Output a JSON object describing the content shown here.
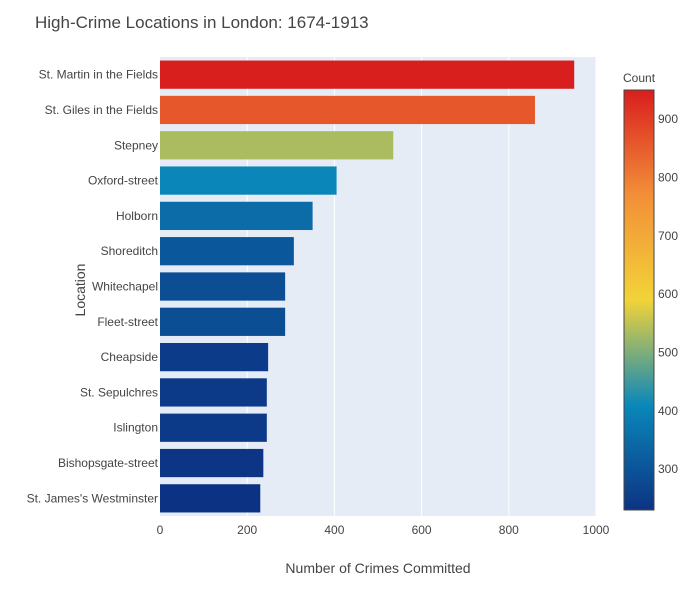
{
  "chart_data": {
    "type": "bar",
    "orientation": "horizontal",
    "title": "High-Crime Locations in London: 1674-1913",
    "xlabel": "Number of Crimes Committed",
    "ylabel": "Location",
    "xlim": [
      0,
      1000
    ],
    "xticks": [
      0,
      200,
      400,
      600,
      800,
      1000
    ],
    "grid": true,
    "categories": [
      "St. Martin in the Fields",
      "St. Giles in the Fields",
      "Stepney",
      "Oxford-street",
      "Holborn",
      "Shoreditch",
      "Whitechapel",
      "Fleet-street",
      "Cheapside",
      "St. Sepulchres",
      "Islington",
      "Bishopsgate-street",
      "St. James's Westminster"
    ],
    "values": [
      950,
      860,
      535,
      405,
      350,
      307,
      287,
      287,
      248,
      245,
      245,
      237,
      230
    ],
    "colorbar": {
      "title": "Count",
      "range": [
        230,
        950
      ],
      "ticks": [
        300,
        400,
        500,
        600,
        700,
        800,
        900
      ],
      "colorscale": [
        [
          0.0,
          "#0c3383"
        ],
        [
          0.25,
          "#0a88ba"
        ],
        [
          0.5,
          "#f2d338"
        ],
        [
          0.75,
          "#f28f38"
        ],
        [
          1.0,
          "#d91e1e"
        ]
      ]
    },
    "plot_background": "#e5ecf6"
  }
}
